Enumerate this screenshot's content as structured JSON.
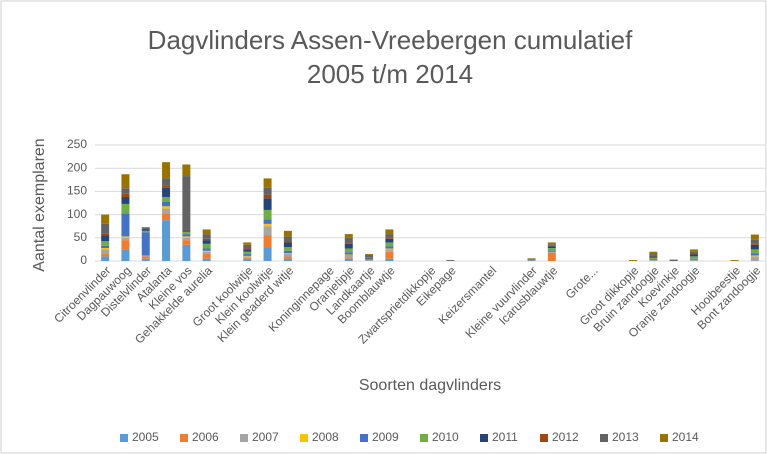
{
  "chart_data": {
    "type": "stacked_bar",
    "title": "Dagvlinders Assen-Vreebergen cumulatief",
    "subtitle": "2005 t/m 2014",
    "x_label": "Soorten dagvlinders",
    "y_label": "Aantal exemplaren",
    "categories": [
      "Citroenvlinder",
      "Dagpauwoog",
      "Distelvlinder",
      "Atalanta",
      "Kleine vos",
      "Gehakkelde aurelia",
      null,
      "Groot koolwitje",
      "Klein koolwitje",
      "Klein geaderd witje",
      null,
      "Koninginnepage",
      "Oranjetipje",
      "Landkaartje",
      "Boomblauwtje",
      null,
      "Zwartsprietdikkopje",
      "Eikepage",
      null,
      "Keizersmantel",
      null,
      "Kleine vuurvlinder",
      "Icarusblauwtje",
      null,
      "Grote...",
      null,
      "Groot dikkopje",
      "Bruin zandoogje",
      "Koevinkje",
      "Oranje zandoogje",
      null,
      "Hooibeestje",
      "Bont zandoogje"
    ],
    "series": [
      {
        "name": "2005",
        "color": "#5b9bd5",
        "values": [
          10,
          25,
          5,
          88,
          35,
          5,
          0,
          5,
          30,
          5,
          0,
          0,
          5,
          0,
          5,
          0,
          0,
          0,
          0,
          0,
          0,
          0,
          0,
          0,
          0,
          0,
          0,
          0,
          0,
          0,
          0,
          0,
          0
        ]
      },
      {
        "name": "2006",
        "color": "#ed7d31",
        "values": [
          5,
          20,
          5,
          15,
          10,
          10,
          0,
          2,
          25,
          5,
          0,
          0,
          3,
          0,
          15,
          0,
          0,
          0,
          0,
          0,
          0,
          0,
          18,
          0,
          0,
          0,
          0,
          0,
          0,
          0,
          0,
          0,
          0
        ]
      },
      {
        "name": "2007",
        "color": "#a5a5a5",
        "values": [
          10,
          5,
          2,
          10,
          5,
          5,
          0,
          3,
          20,
          5,
          0,
          0,
          5,
          2,
          5,
          0,
          0,
          0,
          0,
          0,
          0,
          1,
          2,
          0,
          0,
          0,
          0,
          2,
          0,
          3,
          0,
          0,
          10
        ]
      },
      {
        "name": "2008",
        "color": "#ffc000",
        "values": [
          3,
          3,
          0,
          5,
          3,
          2,
          0,
          1,
          5,
          2,
          0,
          0,
          1,
          0,
          2,
          0,
          0,
          0,
          0,
          0,
          0,
          0,
          0,
          0,
          0,
          0,
          0,
          0,
          0,
          0,
          0,
          0,
          2
        ]
      },
      {
        "name": "2009",
        "color": "#4472c4",
        "values": [
          5,
          50,
          50,
          10,
          5,
          5,
          0,
          4,
          10,
          5,
          0,
          0,
          5,
          1,
          5,
          0,
          0,
          0,
          0,
          0,
          0,
          1,
          3,
          0,
          0,
          0,
          0,
          2,
          0,
          2,
          0,
          0,
          5
        ]
      },
      {
        "name": "2010",
        "color": "#70ad47",
        "values": [
          10,
          20,
          3,
          10,
          5,
          10,
          0,
          5,
          20,
          8,
          0,
          0,
          8,
          2,
          8,
          0,
          0,
          0,
          0,
          0,
          0,
          1,
          5,
          0,
          0,
          0,
          0,
          3,
          0,
          5,
          0,
          0,
          8
        ]
      },
      {
        "name": "2011",
        "color": "#264478",
        "values": [
          12,
          15,
          3,
          20,
          3,
          8,
          0,
          5,
          25,
          10,
          0,
          0,
          10,
          2,
          8,
          0,
          0,
          0,
          0,
          0,
          0,
          1,
          4,
          0,
          0,
          0,
          0,
          3,
          0,
          4,
          0,
          0,
          10
        ]
      },
      {
        "name": "2012",
        "color": "#9e480e",
        "values": [
          5,
          7,
          1,
          5,
          2,
          3,
          0,
          2,
          8,
          3,
          0,
          0,
          3,
          1,
          3,
          0,
          0,
          0,
          0,
          0,
          0,
          0,
          1,
          0,
          0,
          0,
          0,
          1,
          0,
          1,
          0,
          0,
          3
        ]
      },
      {
        "name": "2013",
        "color": "#636363",
        "values": [
          20,
          12,
          3,
          15,
          115,
          10,
          0,
          8,
          15,
          10,
          0,
          0,
          10,
          5,
          7,
          0,
          0,
          2,
          0,
          0,
          0,
          1,
          3,
          0,
          0,
          0,
          0,
          4,
          3,
          5,
          0,
          0,
          8
        ]
      },
      {
        "name": "2014",
        "color": "#997300",
        "values": [
          20,
          30,
          1,
          35,
          25,
          10,
          0,
          5,
          20,
          12,
          0,
          0,
          8,
          2,
          10,
          0,
          0,
          0,
          0,
          0,
          0,
          1,
          4,
          0,
          0,
          0,
          2,
          5,
          0,
          5,
          0,
          2,
          11
        ]
      }
    ],
    "ylim": [
      0,
      250
    ],
    "yticks": [
      0,
      50,
      100,
      150,
      200,
      250
    ],
    "grid": true,
    "legend": "bottom"
  }
}
